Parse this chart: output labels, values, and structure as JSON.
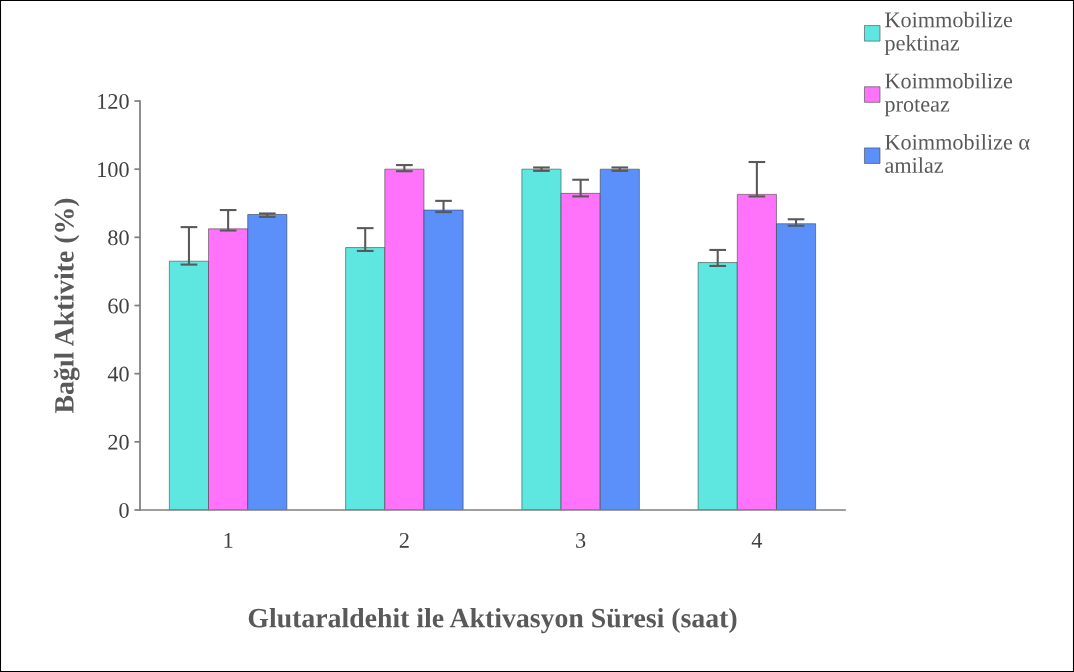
{
  "chart_data": {
    "type": "bar",
    "xlabel": "Glutaraldehit ile Aktivasyon Süresi (saat)",
    "ylabel": "Bağıl Aktivite (%)",
    "categories": [
      "1",
      "2",
      "3",
      "4"
    ],
    "series": [
      {
        "name": "Koimmobilize\npektinaz",
        "color": "#5ee6e0",
        "values": [
          73,
          77,
          100,
          72.6
        ],
        "errors": [
          [
            72,
            83
          ],
          [
            76,
            82.7
          ],
          [
            99.5,
            100.5
          ],
          [
            71.6,
            76.3
          ]
        ]
      },
      {
        "name": "Koimmobilize\nproteaz",
        "color": "#ff73fb",
        "values": [
          82.5,
          100,
          92.9,
          92.6
        ],
        "errors": [
          [
            82,
            88
          ],
          [
            99.4,
            101.2
          ],
          [
            92,
            96.9
          ],
          [
            92,
            102.1
          ]
        ]
      },
      {
        "name": "Koimmobilize α\namilaz",
        "color": "#5b8ff9",
        "values": [
          86.7,
          88,
          100,
          84
        ],
        "errors": [
          [
            86,
            87
          ],
          [
            87.4,
            90.7
          ],
          [
            99.5,
            100.5
          ],
          [
            83.4,
            85.3
          ]
        ]
      }
    ],
    "ylim": [
      0,
      120
    ],
    "yticks": [
      0,
      20,
      40,
      60,
      80,
      100,
      120
    ],
    "grid": false,
    "legend": "right"
  }
}
